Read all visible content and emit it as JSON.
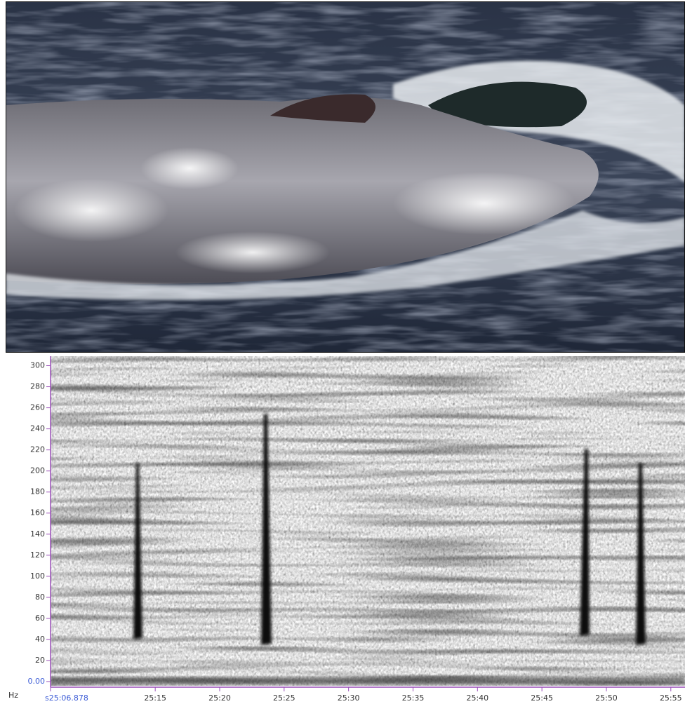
{
  "spectrogram": {
    "y_unit": "Hz",
    "ylim": [
      0,
      305
    ],
    "yticks": [
      {
        "value": 0,
        "label": "0.00"
      },
      20,
      40,
      60,
      80,
      100,
      120,
      140,
      160,
      180,
      200,
      220,
      240,
      260,
      280,
      300
    ],
    "xlim": [
      6.878,
      56.1
    ],
    "xticks": [
      {
        "value": 6.878,
        "label": "s25:06.878"
      },
      {
        "value": 15,
        "label": "25:15"
      },
      {
        "value": 20,
        "label": "25:20"
      },
      {
        "value": 25,
        "label": "25:25"
      },
      {
        "value": 30,
        "label": "25:30"
      },
      {
        "value": 35,
        "label": "25:35"
      },
      {
        "value": 40,
        "label": "25:40"
      },
      {
        "value": 45,
        "label": "25:45"
      },
      {
        "value": 50,
        "label": "25:50"
      },
      {
        "value": 55,
        "label": "25:55"
      }
    ]
  }
}
